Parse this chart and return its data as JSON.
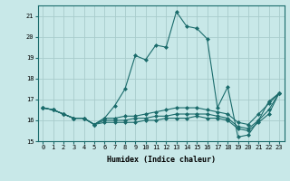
{
  "title": "",
  "xlabel": "Humidex (Indice chaleur)",
  "ylabel": "",
  "background_color": "#c8e8e8",
  "grid_color": "#a8cccc",
  "line_color": "#1a6b6b",
  "xlim": [
    -0.5,
    23.5
  ],
  "ylim": [
    15,
    21.5
  ],
  "yticks": [
    15,
    16,
    17,
    18,
    19,
    20,
    21
  ],
  "xticks": [
    0,
    1,
    2,
    3,
    4,
    5,
    6,
    7,
    8,
    9,
    10,
    11,
    12,
    13,
    14,
    15,
    16,
    17,
    18,
    19,
    20,
    21,
    22,
    23
  ],
  "lines": [
    {
      "x": [
        0,
        1,
        2,
        3,
        4,
        5,
        6,
        7,
        8,
        9,
        10,
        11,
        12,
        13,
        14,
        15,
        16,
        17,
        18,
        19,
        20,
        21,
        22,
        23
      ],
      "y": [
        16.6,
        16.5,
        16.3,
        16.1,
        16.1,
        15.8,
        16.1,
        16.7,
        17.5,
        19.1,
        18.9,
        19.6,
        19.5,
        21.2,
        20.5,
        20.4,
        19.9,
        16.6,
        17.6,
        15.2,
        15.3,
        16.0,
        16.9,
        17.3
      ]
    },
    {
      "x": [
        0,
        1,
        2,
        3,
        4,
        5,
        6,
        7,
        8,
        9,
        10,
        11,
        12,
        13,
        14,
        15,
        16,
        17,
        18,
        19,
        20,
        21,
        22,
        23
      ],
      "y": [
        16.6,
        16.5,
        16.3,
        16.1,
        16.1,
        15.8,
        16.1,
        16.1,
        16.2,
        16.2,
        16.3,
        16.4,
        16.5,
        16.6,
        16.6,
        16.6,
        16.5,
        16.4,
        16.3,
        15.9,
        15.8,
        16.3,
        16.8,
        17.3
      ]
    },
    {
      "x": [
        0,
        1,
        2,
        3,
        4,
        5,
        6,
        7,
        8,
        9,
        10,
        11,
        12,
        13,
        14,
        15,
        16,
        17,
        18,
        19,
        20,
        21,
        22,
        23
      ],
      "y": [
        16.6,
        16.5,
        16.3,
        16.1,
        16.1,
        15.8,
        16.0,
        16.0,
        16.0,
        16.1,
        16.1,
        16.2,
        16.2,
        16.3,
        16.3,
        16.3,
        16.3,
        16.2,
        16.1,
        15.7,
        15.6,
        16.0,
        16.5,
        17.3
      ]
    },
    {
      "x": [
        0,
        1,
        2,
        3,
        4,
        5,
        6,
        7,
        8,
        9,
        10,
        11,
        12,
        13,
        14,
        15,
        16,
        17,
        18,
        19,
        20,
        21,
        22,
        23
      ],
      "y": [
        16.6,
        16.5,
        16.3,
        16.1,
        16.1,
        15.8,
        15.9,
        15.9,
        15.9,
        15.9,
        16.0,
        16.0,
        16.1,
        16.1,
        16.1,
        16.2,
        16.1,
        16.1,
        16.0,
        15.6,
        15.5,
        15.9,
        16.3,
        17.3
      ]
    }
  ],
  "xlabel_fontsize": 6,
  "tick_fontsize": 5,
  "marker_size": 2.0
}
